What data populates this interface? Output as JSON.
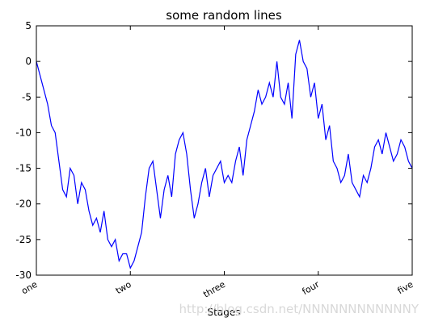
{
  "chart_data": {
    "type": "line",
    "title": "some random lines",
    "xlabel": "Stages",
    "x": [
      0,
      10,
      20,
      30,
      40,
      50,
      60,
      70,
      80,
      90,
      100,
      110,
      120,
      130,
      140,
      150,
      160,
      170,
      180,
      190,
      200,
      210,
      220,
      230,
      240,
      250,
      260,
      270,
      280,
      290,
      300,
      310,
      320,
      330,
      340,
      350,
      360,
      370,
      380,
      390,
      400,
      410,
      420,
      430,
      440,
      450,
      460,
      470,
      480,
      490,
      500,
      510,
      520,
      530,
      540,
      550,
      560,
      570,
      580,
      590,
      600,
      610,
      620,
      630,
      640,
      650,
      660,
      670,
      680,
      690,
      700,
      710,
      720,
      730,
      740,
      750,
      760,
      770,
      780,
      790,
      800,
      810,
      820,
      830,
      840,
      850,
      860,
      870,
      880,
      890,
      900,
      910,
      920,
      930,
      940,
      950,
      960,
      970,
      980,
      990,
      1000
    ],
    "series": [
      {
        "color": "#0000ff",
        "values": [
          0,
          -2,
          -4,
          -6,
          -9,
          -10,
          -14,
          -18,
          -19,
          -15,
          -16,
          -20,
          -17,
          -18,
          -21,
          -23,
          -22,
          -24,
          -21,
          -25,
          -26,
          -25,
          -28,
          -27,
          -27,
          -29,
          -28,
          -26,
          -24,
          -19,
          -15,
          -14,
          -18,
          -22,
          -18,
          -16,
          -19,
          -13,
          -11,
          -10,
          -13,
          -18,
          -22,
          -20,
          -17,
          -15,
          -19,
          -16,
          -15,
          -14,
          -17,
          -16,
          -17,
          -14,
          -12,
          -16,
          -11,
          -9,
          -7,
          -4,
          -6,
          -5,
          -3,
          -5,
          0,
          -5,
          -6,
          -3,
          -8,
          1,
          3,
          0,
          -1,
          -5,
          -3,
          -8,
          -6,
          -11,
          -9,
          -14,
          -15,
          -17,
          -16,
          -13,
          -17,
          -18,
          -19,
          -16,
          -17,
          -15,
          -12,
          -11,
          -13,
          -10,
          -12,
          -14,
          -13,
          -11,
          -12,
          -14,
          -15
        ]
      }
    ],
    "xlim": [
      0,
      1000
    ],
    "xticks": [
      {
        "value": 0,
        "label": "one"
      },
      {
        "value": 250,
        "label": "two"
      },
      {
        "value": 500,
        "label": "three"
      },
      {
        "value": 750,
        "label": "four"
      },
      {
        "value": 1000,
        "label": "five"
      }
    ],
    "ylim": [
      -30,
      5
    ],
    "yticks": [
      -30,
      -25,
      -20,
      -15,
      -10,
      -5,
      0,
      5
    ],
    "watermark": "http://blog.csdn.net/NNNNNNNNNNNNY"
  }
}
